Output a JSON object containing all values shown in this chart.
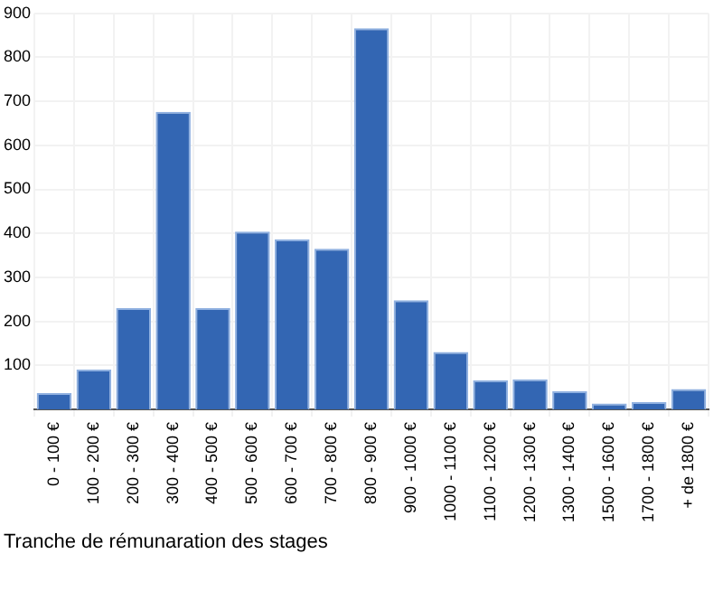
{
  "chart_data": {
    "type": "bar",
    "xlabel": "Tranche de rémunaration des stages",
    "categories": [
      "0 - 100 €",
      "100 - 200 €",
      "200 - 300 €",
      "300 - 400 €",
      "400 - 500 €",
      "500 - 600 €",
      "600 - 700 €",
      "700 - 800 €",
      "800 - 900 €",
      "900 - 1000 €",
      "1000 - 1100 €",
      "1100 - 1200 €",
      "1200 - 1300 €",
      "1300 - 1400 €",
      "1500 - 1600 €",
      "1700 - 1800 €",
      "+ de 1800 €"
    ],
    "values": [
      37,
      90,
      230,
      676,
      230,
      404,
      386,
      365,
      866,
      248,
      130,
      66,
      68,
      41,
      13,
      16,
      46
    ],
    "color": "#3366b3",
    "ylim": [
      0,
      900
    ],
    "yticks": [
      100,
      200,
      300,
      400,
      500,
      600,
      700,
      800,
      900
    ],
    "grid": true
  }
}
